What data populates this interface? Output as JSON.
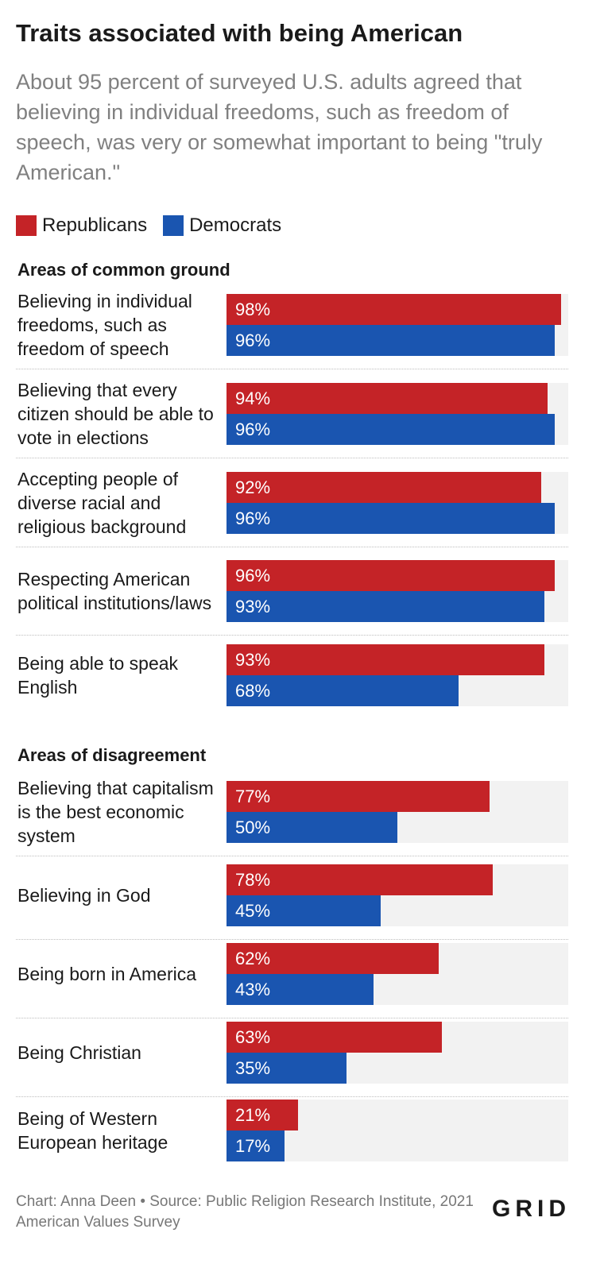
{
  "header": {
    "title": "Traits associated with being American",
    "subtitle": "About 95 percent of surveyed U.S. adults agreed that believing in individual freedoms, such as freedom of speech, was very or somewhat important to being \"truly American.\""
  },
  "legend": {
    "republicans": "Republicans",
    "democrats": "Democrats"
  },
  "colors": {
    "republicans": "#c42327",
    "democrats": "#1a55b0",
    "track": "#f2f2f2"
  },
  "footer": {
    "credit": "Chart: Anna Deen • Source: Public Religion Research Institute, 2021 American Values Survey",
    "logo": "GRID"
  },
  "chart_data": {
    "type": "bar",
    "orientation": "horizontal",
    "xlim": [
      0,
      100
    ],
    "value_suffix": "%",
    "series_names": [
      "Republicans",
      "Democrats"
    ],
    "sections": [
      {
        "title": "Areas of common ground",
        "items": [
          {
            "label": "Believing in individual freedoms, such as freedom of speech",
            "republicans": 98,
            "democrats": 96
          },
          {
            "label": "Believing that every citizen should be able to vote in elections",
            "republicans": 94,
            "democrats": 96
          },
          {
            "label": "Accepting people of diverse racial and religious background",
            "republicans": 92,
            "democrats": 96
          },
          {
            "label": "Respecting American political institutions/laws",
            "republicans": 96,
            "democrats": 93
          },
          {
            "label": "Being able to speak English",
            "republicans": 93,
            "democrats": 68
          }
        ]
      },
      {
        "title": "Areas of disagreement",
        "items": [
          {
            "label": "Believing that capitalism is the best economic system",
            "republicans": 77,
            "democrats": 50
          },
          {
            "label": "Believing in God",
            "republicans": 78,
            "democrats": 45
          },
          {
            "label": "Being born in America",
            "republicans": 62,
            "democrats": 43
          },
          {
            "label": "Being Christian",
            "republicans": 63,
            "democrats": 35
          },
          {
            "label": "Being of Western European heritage",
            "republicans": 21,
            "democrats": 17
          }
        ]
      }
    ]
  }
}
